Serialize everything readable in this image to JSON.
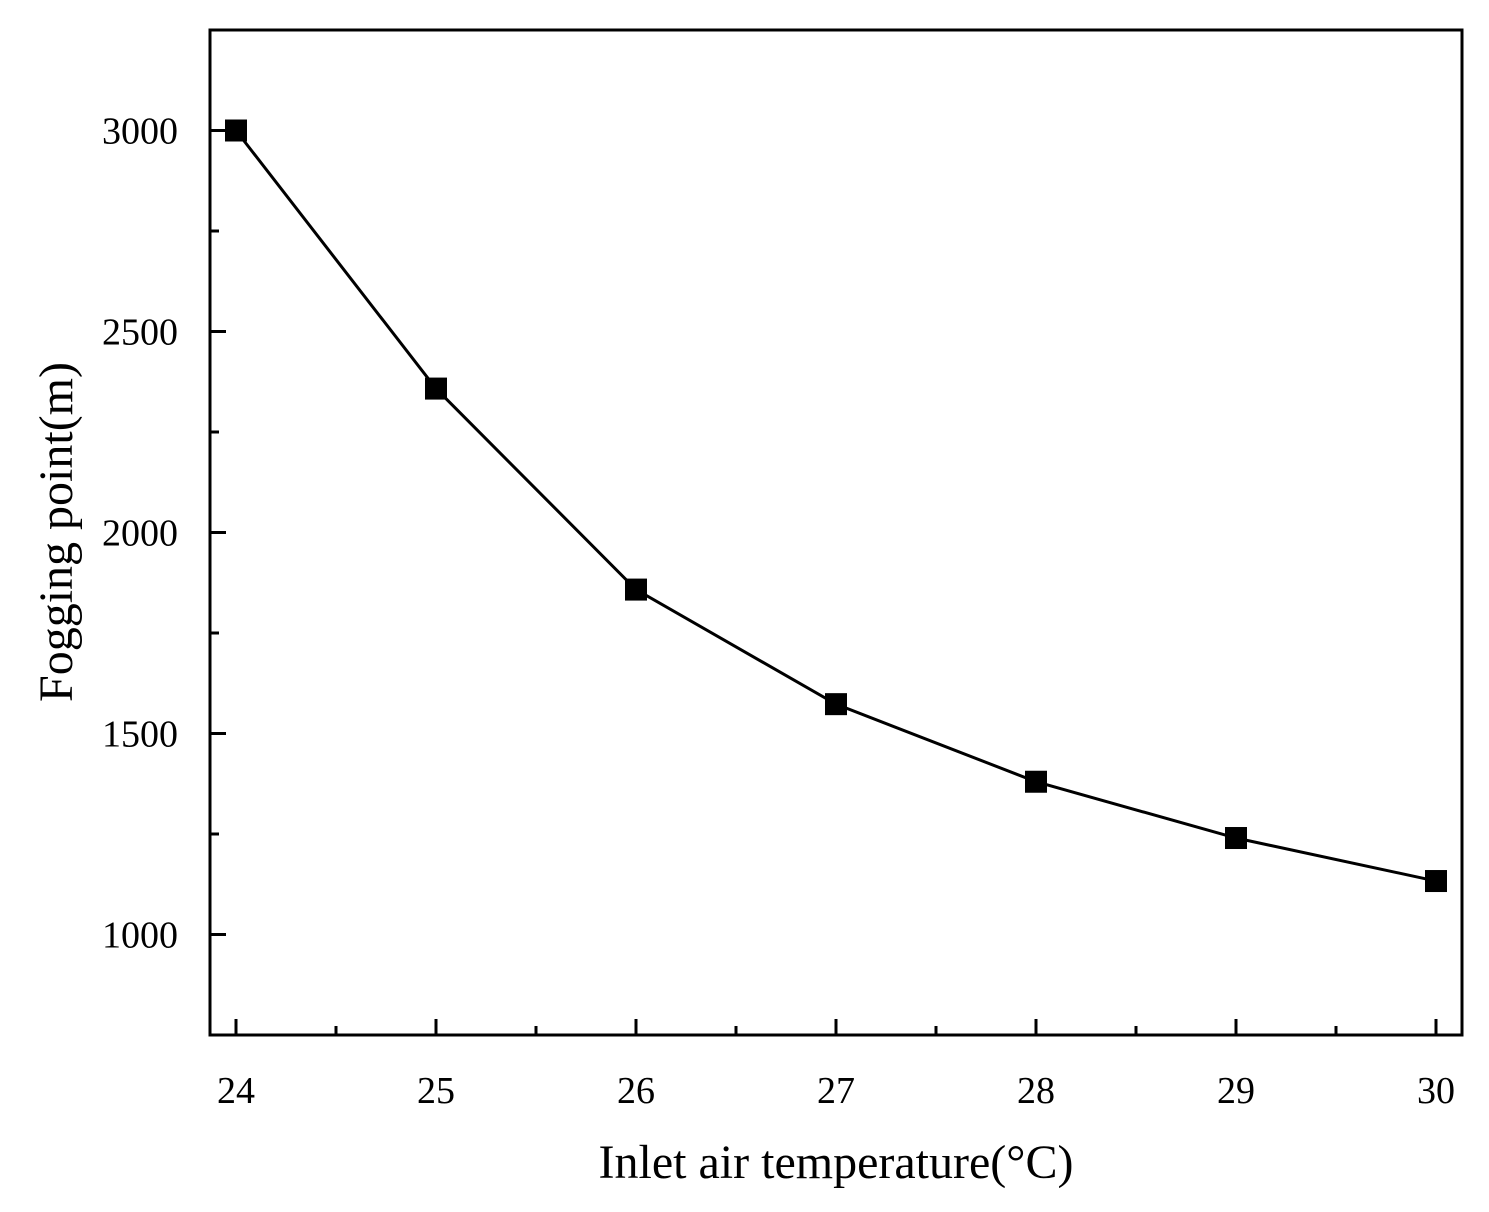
{
  "chart_data": {
    "type": "line",
    "title": "",
    "xlabel": "Inlet air temperature(°C)",
    "ylabel": "Fogging point(m)",
    "x": [
      24,
      25,
      26,
      27,
      28,
      29,
      30
    ],
    "series": [
      {
        "name": "Fogging point",
        "values": [
          3000,
          2358,
          1858,
          1573,
          1380,
          1240,
          1133
        ]
      }
    ],
    "xlim": [
      23.87,
      30.13
    ],
    "ylim": [
      750,
      3250
    ],
    "xticks": [
      24,
      25,
      26,
      27,
      28,
      29,
      30
    ],
    "yticks": [
      1000,
      1500,
      2000,
      2500,
      3000
    ],
    "grid": false,
    "marker": "square",
    "line_color": "#000000",
    "marker_color": "#000000"
  }
}
